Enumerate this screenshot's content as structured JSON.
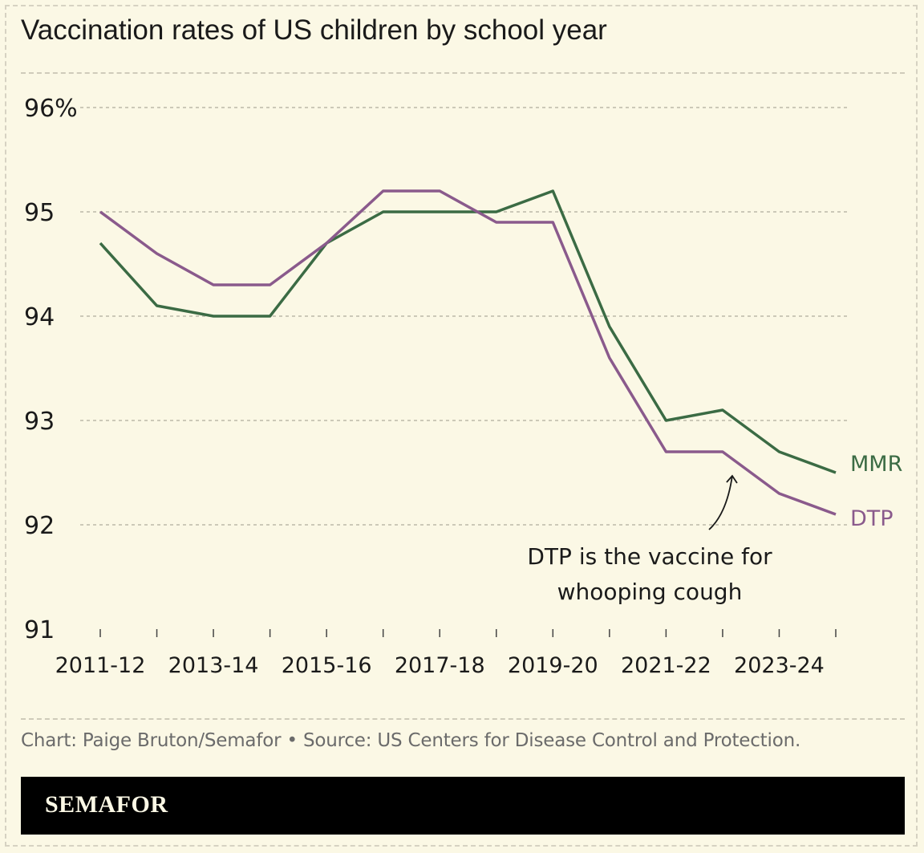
{
  "title": "Vaccination rates of US children by school year",
  "credit": "Chart: Paige Bruton/Semafor • Source: US Centers for Disease Control and Protection.",
  "brand": "SEMAFOR",
  "colors": {
    "background": "#fbf8e5",
    "mmr": "#3b6b44",
    "dtp": "#8a5a8c",
    "text": "#1a1a1a",
    "grid": "#bdb9aa"
  },
  "chart_data": {
    "type": "line",
    "title": "Vaccination rates of US children by school year",
    "xlabel": "",
    "ylabel": "",
    "ylim": [
      91,
      96
    ],
    "yticks": [
      91,
      92,
      93,
      94,
      95,
      96
    ],
    "ytick_labels": [
      "91",
      "92",
      "93",
      "94",
      "95",
      "96%"
    ],
    "x": [
      "2011-12",
      "2012-13",
      "2013-14",
      "2014-15",
      "2015-16",
      "2016-17",
      "2017-18",
      "2018-19",
      "2019-20",
      "2020-21",
      "2021-22",
      "2022-23",
      "2023-24",
      "2024-25"
    ],
    "xtick_labels": [
      "2011-12",
      "2013-14",
      "2015-16",
      "2017-18",
      "2019-20",
      "2021-22",
      "2023-24"
    ],
    "grid": true,
    "series": [
      {
        "name": "MMR",
        "color": "#3b6b44",
        "values": [
          94.7,
          94.1,
          94.0,
          94.0,
          94.7,
          95.0,
          95.0,
          95.0,
          95.2,
          93.9,
          93.0,
          93.1,
          92.7,
          92.5
        ]
      },
      {
        "name": "DTP",
        "color": "#8a5a8c",
        "values": [
          95.0,
          94.6,
          94.3,
          94.3,
          94.7,
          95.2,
          95.2,
          94.9,
          94.9,
          93.6,
          92.7,
          92.7,
          92.3,
          92.1
        ]
      }
    ],
    "annotation": {
      "lines": [
        "DTP is the vaccine for",
        "whooping cough"
      ],
      "points_to": "2022-23"
    }
  }
}
